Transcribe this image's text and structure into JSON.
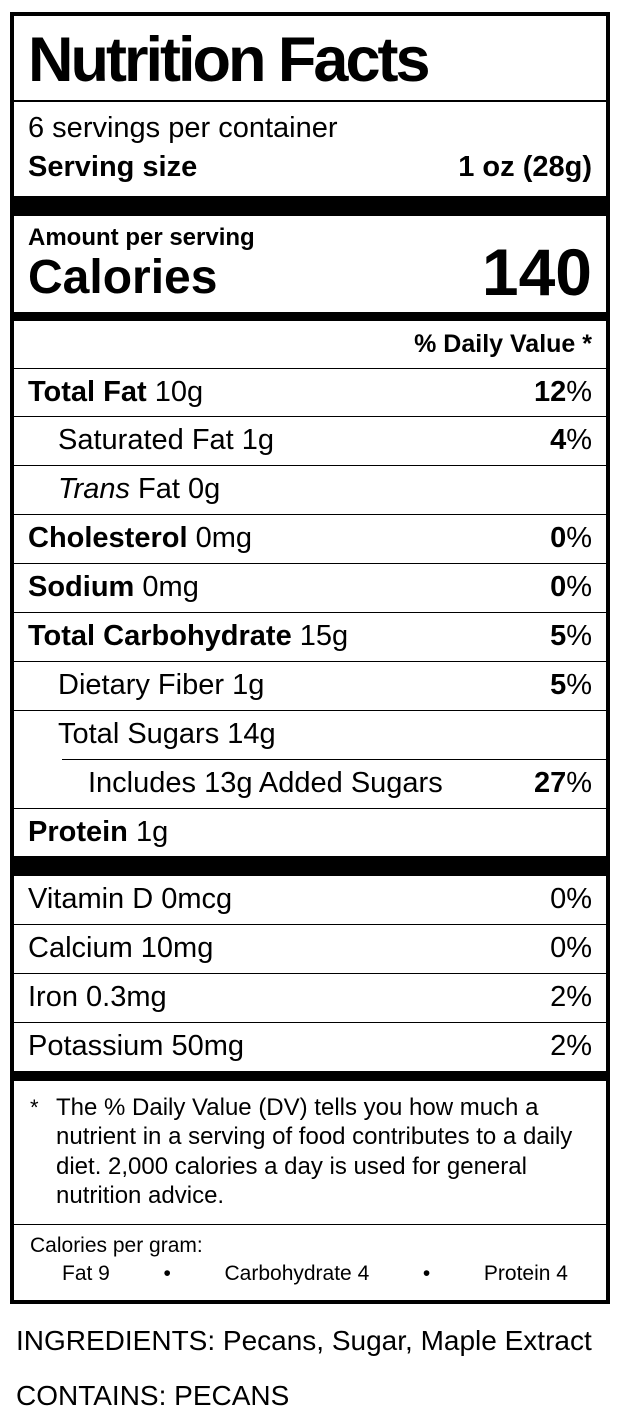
{
  "label": {
    "title": "Nutrition Facts",
    "servings_per_container": "6 servings per container",
    "serving_size": {
      "label": "Serving size",
      "value": "1 oz (28g)"
    },
    "amount_per_serving": "Amount per serving",
    "calories": {
      "label": "Calories",
      "value": "140"
    },
    "daily_value_header": "% Daily Value *",
    "percent_sign": "%",
    "nutrients": [
      {
        "name": "Total Fat",
        "amount": "10g",
        "dv": "12"
      },
      {
        "name": "Saturated Fat",
        "amount": "1g",
        "dv": "4"
      },
      {
        "name_italic": "Trans",
        "name": "Fat",
        "amount": "0g"
      },
      {
        "name": "Cholesterol",
        "amount": "0mg",
        "dv": "0"
      },
      {
        "name": "Sodium",
        "amount": "0mg",
        "dv": "0"
      },
      {
        "name": "Total Carbohydrate",
        "amount": "15g",
        "dv": "5"
      },
      {
        "name": "Dietary Fiber",
        "amount": "1g",
        "dv": "5"
      },
      {
        "name": "Total Sugars",
        "amount": "14g"
      },
      {
        "name": "Includes 13g Added Sugars",
        "dv": "27"
      },
      {
        "name": "Protein",
        "amount": "1g"
      }
    ],
    "vitamins": [
      {
        "name": "Vitamin D 0mcg",
        "dv": "0"
      },
      {
        "name": "Calcium 10mg",
        "dv": "0"
      },
      {
        "name": "Iron 0.3mg",
        "dv": "2"
      },
      {
        "name": "Potassium 50mg",
        "dv": "2"
      }
    ],
    "footnote": {
      "symbol": "*",
      "text": "The % Daily Value (DV) tells you how much a nutrient in a serving of food contributes to a daily diet. 2,000 calories a day is used for general nutrition advice."
    },
    "calories_per_gram": {
      "title": "Calories per gram:",
      "bullet": "•",
      "items": [
        "Fat 9",
        "Carbohydrate 4",
        "Protein 4"
      ]
    }
  },
  "ingredients": "INGREDIENTS: Pecans, Sugar, Maple Extract",
  "contains": "CONTAINS: PECANS"
}
